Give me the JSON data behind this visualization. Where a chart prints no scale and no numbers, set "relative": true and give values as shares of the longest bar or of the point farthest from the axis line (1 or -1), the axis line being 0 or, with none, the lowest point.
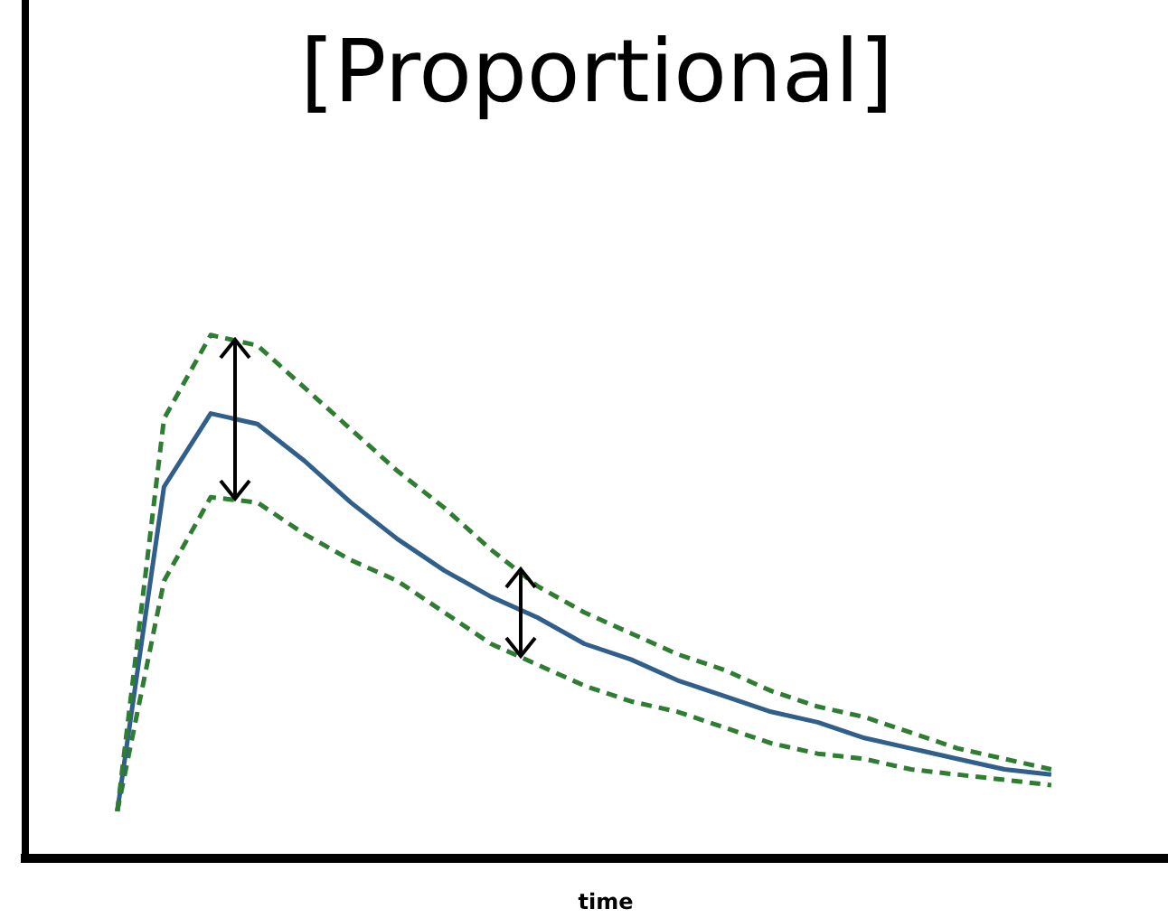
{
  "chart_data": {
    "type": "line",
    "title": "[Proportional]",
    "xlabel": "time",
    "relative": true,
    "marker": "none",
    "categories": [
      null,
      null,
      null,
      null,
      null,
      null,
      null,
      null,
      null,
      null,
      null,
      null,
      null,
      null,
      null,
      null,
      null,
      null,
      null,
      null,
      null
    ],
    "series": [
      {
        "color": "#2e7d32",
        "line_style": "dashed",
        "values": [
          0.09,
          0.84,
          1,
          0.98,
          0.9,
          0.82,
          0.74,
          0.67,
          0.59,
          0.52,
          0.47,
          0.43,
          0.39,
          0.36,
          0.32,
          0.29,
          0.27,
          0.24,
          0.21,
          0.19,
          0.17
        ]
      },
      {
        "color": "#2f5f8a",
        "line_style": "solid",
        "values": [
          0.09,
          0.71,
          0.85,
          0.83,
          0.76,
          0.68,
          0.61,
          0.55,
          0.5,
          0.46,
          0.41,
          0.38,
          0.34,
          0.31,
          0.28,
          0.26,
          0.23,
          0.21,
          0.19,
          0.17,
          0.16
        ]
      },
      {
        "color": "#2e7d32",
        "line_style": "dashed",
        "values": [
          0.09,
          0.53,
          0.69,
          0.68,
          0.62,
          0.57,
          0.53,
          0.47,
          0.41,
          0.37,
          0.33,
          0.3,
          0.28,
          0.25,
          0.22,
          0.2,
          0.19,
          0.17,
          0.16,
          0.15,
          0.14
        ]
      }
    ]
  }
}
